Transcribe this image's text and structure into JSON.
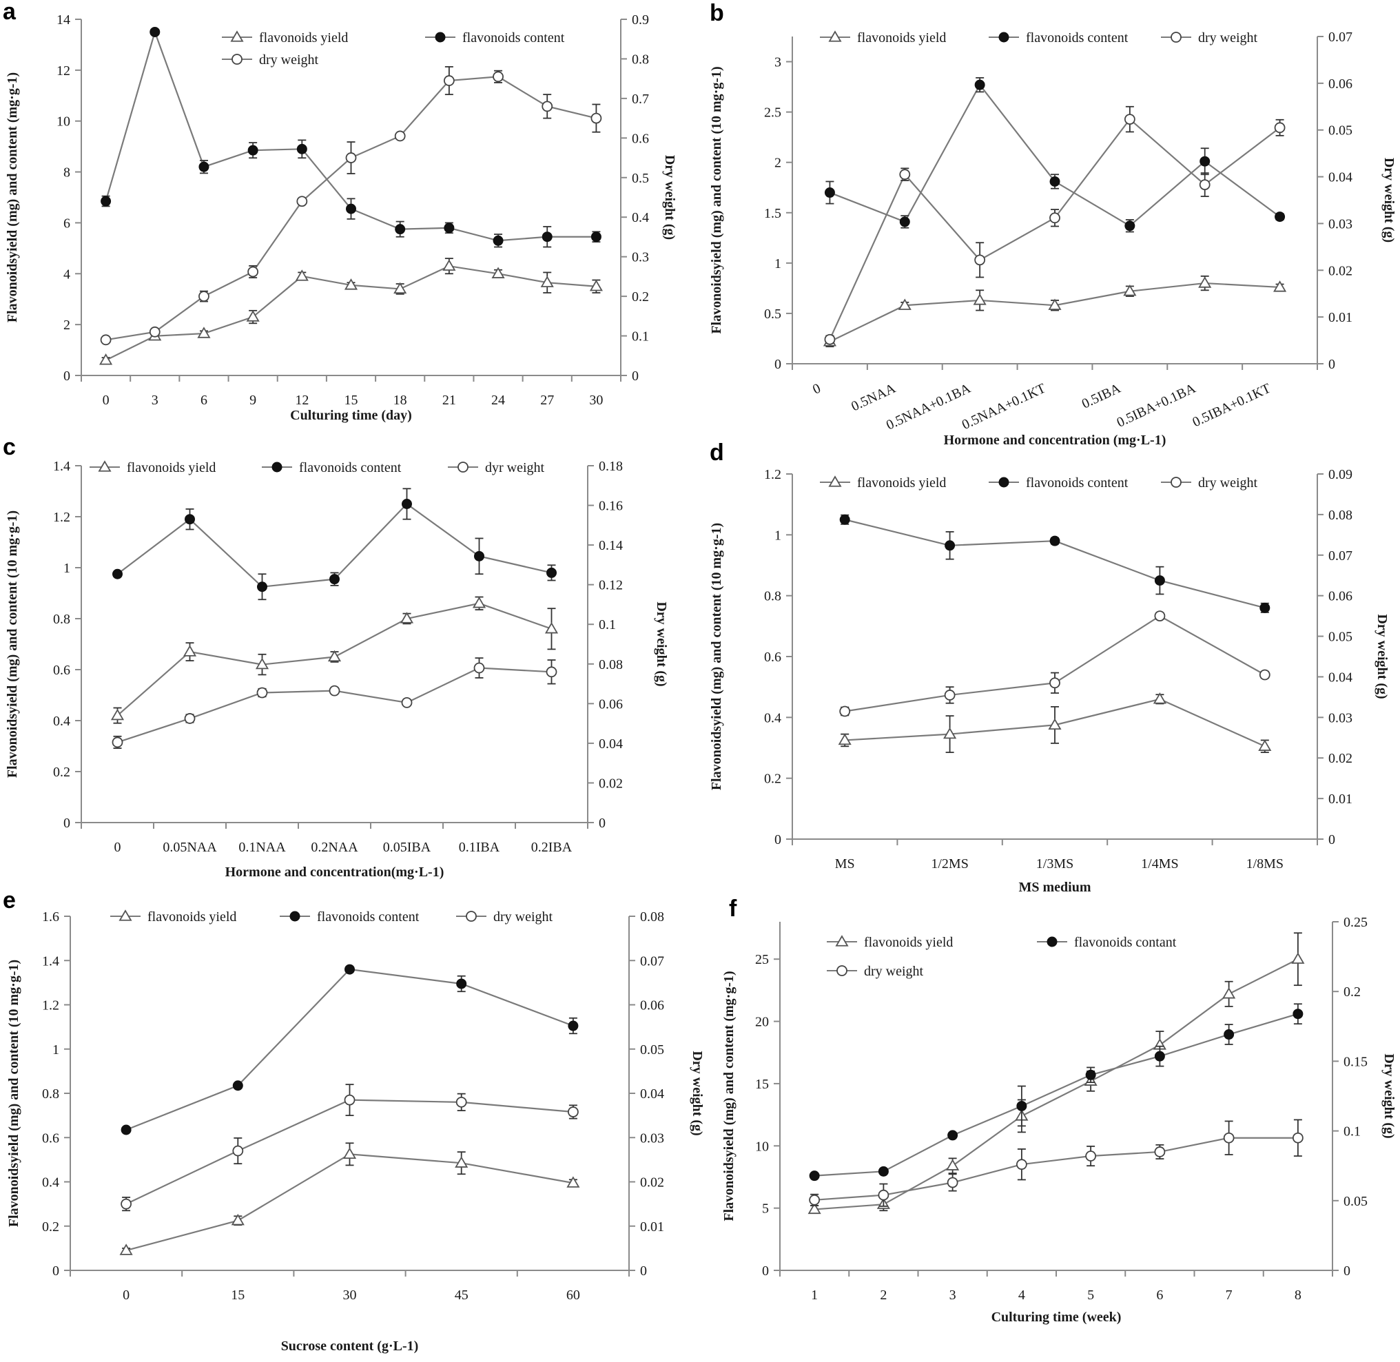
{
  "figure": {
    "panels": [
      "a",
      "b",
      "c",
      "d",
      "e",
      "f"
    ]
  },
  "chart_data": [
    {
      "panel": "a",
      "type": "line",
      "title": "",
      "categories": [
        "0",
        "3",
        "6",
        "9",
        "12",
        "15",
        "18",
        "21",
        "24",
        "27",
        "30"
      ],
      "xlabel": "Culturing time (day)",
      "ylabel": "Flavonoidsyield (mg) and content (mg·g-1)",
      "y2label": "Dry weight (g)",
      "ylim": [
        0,
        14
      ],
      "yticks": [
        "0",
        "2",
        "4",
        "6",
        "8",
        "10",
        "12",
        "14"
      ],
      "y2lim": [
        0,
        0.9
      ],
      "y2ticks": [
        "0",
        "0.1",
        "0.2",
        "0.3",
        "0.4",
        "0.5",
        "0.6",
        "0.7",
        "0.8",
        "0.9"
      ],
      "legend_rows": [
        [
          "flavonoids yield",
          "flavonoids content"
        ],
        [
          "dry weight"
        ]
      ],
      "series": [
        {
          "name": "flavonoids yield",
          "marker": "triangle",
          "axis": "left",
          "values": [
            0.6,
            1.55,
            1.65,
            2.3,
            3.9,
            3.55,
            3.4,
            4.3,
            4.0,
            3.65,
            3.5
          ],
          "errors": [
            0.1,
            0.1,
            0.1,
            0.25,
            0.15,
            0.1,
            0.2,
            0.3,
            0.15,
            0.4,
            0.25
          ]
        },
        {
          "name": "flavonoids content",
          "marker": "filled-circle",
          "axis": "left",
          "values": [
            6.85,
            13.5,
            8.2,
            8.85,
            8.9,
            6.55,
            5.75,
            5.8,
            5.3,
            5.45,
            5.45
          ],
          "errors": [
            0.2,
            0.1,
            0.25,
            0.3,
            0.35,
            0.4,
            0.3,
            0.2,
            0.25,
            0.4,
            0.2
          ]
        },
        {
          "name": "dry weight",
          "marker": "open-circle",
          "axis": "right",
          "values": [
            0.09,
            0.11,
            0.2,
            0.262,
            0.44,
            0.55,
            0.605,
            0.745,
            0.755,
            0.68,
            0.65
          ],
          "errors": [
            0.005,
            0.005,
            0.013,
            0.015,
            0.005,
            0.04,
            0.005,
            0.035,
            0.015,
            0.03,
            0.035
          ]
        }
      ]
    },
    {
      "panel": "b",
      "type": "line",
      "title": "",
      "categories": [
        "0",
        "0.5NAA",
        "0.5NAA+0.1BA",
        "0.5NAA+0.1KT",
        "0.5IBA",
        "0.5IBA+0.1BA",
        "0.5IBA+0.1KT"
      ],
      "xlabel": "Hormone and concentration (mg·L-1)",
      "ylabel": "Flavonoidsyield (mg) and content (10 mg·g-1)",
      "y2label": "Dry weight (g)",
      "ylim": [
        0,
        3.25
      ],
      "yticks": [
        "0",
        "0.5",
        "1",
        "1.5",
        "2",
        "2.5",
        "3"
      ],
      "y2lim": [
        0,
        0.07
      ],
      "y2ticks": [
        "0",
        "0.01",
        "0.02",
        "0.03",
        "0.04",
        "0.05",
        "0.06",
        "0.07"
      ],
      "legend_rows": [
        [
          "flavonoids yield",
          "flavonoids content",
          "dry weight"
        ]
      ],
      "series": [
        {
          "name": "flavonoids yield",
          "marker": "triangle",
          "axis": "left",
          "values": [
            0.22,
            0.58,
            0.63,
            0.58,
            0.72,
            0.8,
            0.76
          ],
          "errors": [
            0.05,
            0.03,
            0.1,
            0.05,
            0.05,
            0.07,
            0.03
          ]
        },
        {
          "name": "flavonoids content",
          "marker": "filled-circle",
          "axis": "left",
          "values": [
            1.7,
            1.41,
            2.77,
            1.81,
            1.37,
            2.01,
            1.46
          ],
          "errors": [
            0.11,
            0.06,
            0.07,
            0.07,
            0.06,
            0.13,
            0.03
          ]
        },
        {
          "name": "dry weight",
          "marker": "open-circle",
          "axis": "right",
          "values": [
            0.0052,
            0.0405,
            0.0222,
            0.0312,
            0.0523,
            0.0383,
            0.0505
          ],
          "errors": [
            0.0008,
            0.0013,
            0.0037,
            0.0018,
            0.0027,
            0.0025,
            0.0017
          ]
        }
      ]
    },
    {
      "panel": "c",
      "type": "line",
      "title": "",
      "categories": [
        "0",
        "0.05NAA",
        "0.1NAA",
        "0.2NAA",
        "0.05IBA",
        "0.1IBA",
        "0.2IBA"
      ],
      "xlabel": "Hormone and concentration(mg·L-1)",
      "ylabel": "Flavonoidsyield (mg) and content (10 mg·g-1)",
      "y2label": "Dry weight (g)",
      "ylim": [
        0,
        1.4
      ],
      "yticks": [
        "0",
        "0.2",
        "0.4",
        "0.6",
        "0.8",
        "1",
        "1.2",
        "1.4"
      ],
      "y2lim": [
        0,
        0.18
      ],
      "y2ticks": [
        "0",
        "0.02",
        "0.04",
        "0.06",
        "0.08",
        "0.1",
        "0.12",
        "0.14",
        "0.16",
        "0.18"
      ],
      "legend_rows": [
        [
          "flavonoids yield",
          "flavonoids content",
          "dyr weight"
        ]
      ],
      "series": [
        {
          "name": "flavonoids yield",
          "marker": "triangle",
          "axis": "left",
          "values": [
            0.42,
            0.67,
            0.62,
            0.65,
            0.8,
            0.86,
            0.76
          ],
          "errors": [
            0.03,
            0.035,
            0.04,
            0.02,
            0.02,
            0.025,
            0.08
          ]
        },
        {
          "name": "flavonoids content",
          "marker": "filled-circle",
          "axis": "left",
          "values": [
            0.975,
            1.19,
            0.925,
            0.955,
            1.25,
            1.045,
            0.98
          ],
          "errors": [
            0.01,
            0.04,
            0.05,
            0.025,
            0.06,
            0.07,
            0.03
          ]
        },
        {
          "name": "dyr weight",
          "marker": "open-circle",
          "axis": "right",
          "values": [
            0.0405,
            0.0525,
            0.0655,
            0.0665,
            0.0605,
            0.078,
            0.076
          ],
          "errors": [
            0.003,
            0.002,
            0.002,
            0.001,
            0.001,
            0.005,
            0.006
          ]
        }
      ]
    },
    {
      "panel": "d",
      "type": "line",
      "title": "",
      "categories": [
        "MS",
        "1/2MS",
        "1/3MS",
        "1/4MS",
        "1/8MS"
      ],
      "xlabel": "MS medium",
      "ylabel": "Flavonoidsyield (mg) and content (10 mg·g-1)",
      "y2label": "Dry weight (g)",
      "ylim": [
        0,
        1.2
      ],
      "yticks": [
        "0",
        "0.2",
        "0.4",
        "0.6",
        "0.8",
        "1",
        "1.2"
      ],
      "y2lim": [
        0,
        0.09
      ],
      "y2ticks": [
        "0",
        "0.01",
        "0.02",
        "0.03",
        "0.04",
        "0.05",
        "0.06",
        "0.07",
        "0.08",
        "0.09"
      ],
      "legend_rows": [
        [
          "flavonoids yield",
          "flavonoids content",
          "dry weight"
        ]
      ],
      "series": [
        {
          "name": "flavonoids yield",
          "marker": "triangle",
          "axis": "left",
          "values": [
            0.325,
            0.345,
            0.375,
            0.46,
            0.305
          ],
          "errors": [
            0.02,
            0.06,
            0.06,
            0.015,
            0.02
          ]
        },
        {
          "name": "flavonoids content",
          "marker": "filled-circle",
          "axis": "left",
          "values": [
            1.05,
            0.965,
            0.98,
            0.85,
            0.76
          ],
          "errors": [
            0.015,
            0.045,
            0.01,
            0.045,
            0.015
          ]
        },
        {
          "name": "dry weight",
          "marker": "open-circle",
          "axis": "right",
          "values": [
            0.0315,
            0.0355,
            0.0385,
            0.055,
            0.0405
          ],
          "errors": [
            0.001,
            0.002,
            0.0025,
            0.0008,
            0.0008
          ]
        }
      ]
    },
    {
      "panel": "e",
      "type": "line",
      "title": "",
      "categories": [
        "0",
        "15",
        "30",
        "45",
        "60"
      ],
      "xlabel": "Sucrose content (g·L-1)",
      "ylabel": "Flavonoidsyield (mg) and content (10 mg·g-1)",
      "y2label": "Dry weight (g)",
      "ylim": [
        0,
        1.6
      ],
      "yticks": [
        "0",
        "0.2",
        "0.4",
        "0.6",
        "0.8",
        "1",
        "1.2",
        "1.4",
        "1.6"
      ],
      "y2lim": [
        0,
        0.08
      ],
      "y2ticks": [
        "0",
        "0.01",
        "0.02",
        "0.03",
        "0.04",
        "0.05",
        "0.06",
        "0.07",
        "0.08"
      ],
      "legend_rows": [
        [
          "flavonoids yield",
          "flavonoids content",
          "dry weight"
        ]
      ],
      "series": [
        {
          "name": "flavonoids yield",
          "marker": "triangle",
          "axis": "left",
          "values": [
            0.09,
            0.225,
            0.525,
            0.485,
            0.395
          ],
          "errors": [
            0.01,
            0.02,
            0.05,
            0.05,
            0.015
          ]
        },
        {
          "name": "flavonoids content",
          "marker": "filled-circle",
          "axis": "left",
          "values": [
            0.635,
            0.835,
            1.36,
            1.295,
            1.105
          ],
          "errors": [
            0.01,
            0.01,
            0.01,
            0.035,
            0.035
          ]
        },
        {
          "name": "dry weight",
          "marker": "open-circle",
          "axis": "right",
          "values": [
            0.015,
            0.027,
            0.0385,
            0.038,
            0.0358
          ],
          "errors": [
            0.0015,
            0.0029,
            0.0035,
            0.0019,
            0.0015
          ]
        }
      ]
    },
    {
      "panel": "f",
      "type": "line",
      "title": "",
      "categories": [
        "1",
        "2",
        "3",
        "4",
        "5",
        "6",
        "7",
        "8"
      ],
      "xlabel": "Culturing time (week)",
      "ylabel": "Flavonoidsyield (mg) and content (mg·g-1)",
      "y2label": "Dry weight (g)",
      "ylim": [
        0,
        28
      ],
      "yticks": [
        "0",
        "5",
        "10",
        "15",
        "20",
        "25"
      ],
      "y2lim": [
        0,
        0.25
      ],
      "y2ticks": [
        "0",
        "0.05",
        "0.1",
        "0.15",
        "0.2",
        "0.25"
      ],
      "legend_rows": [
        [
          "flavonoids yield",
          "flavonoids contant"
        ],
        [
          "dry weight"
        ]
      ],
      "series": [
        {
          "name": "flavonoids yield",
          "marker": "triangle",
          "axis": "left",
          "values": [
            4.9,
            5.3,
            8.4,
            12.4,
            15.2,
            18.1,
            22.2,
            25.0
          ],
          "errors": [
            0.3,
            0.5,
            0.6,
            1.3,
            0.8,
            1.1,
            1.0,
            2.1
          ]
        },
        {
          "name": "flavonoids contant",
          "marker": "filled-circle",
          "axis": "left",
          "values": [
            7.6,
            7.95,
            10.85,
            13.2,
            15.7,
            17.2,
            18.95,
            20.6
          ],
          "errors": [
            0.15,
            0.2,
            0.2,
            1.6,
            0.6,
            0.8,
            0.8,
            0.8
          ]
        },
        {
          "name": "dry weight",
          "marker": "open-circle",
          "axis": "right",
          "values": [
            0.0505,
            0.054,
            0.063,
            0.076,
            0.082,
            0.085,
            0.095,
            0.095
          ],
          "errors": [
            0.004,
            0.008,
            0.006,
            0.011,
            0.007,
            0.005,
            0.012,
            0.013
          ]
        }
      ]
    }
  ]
}
